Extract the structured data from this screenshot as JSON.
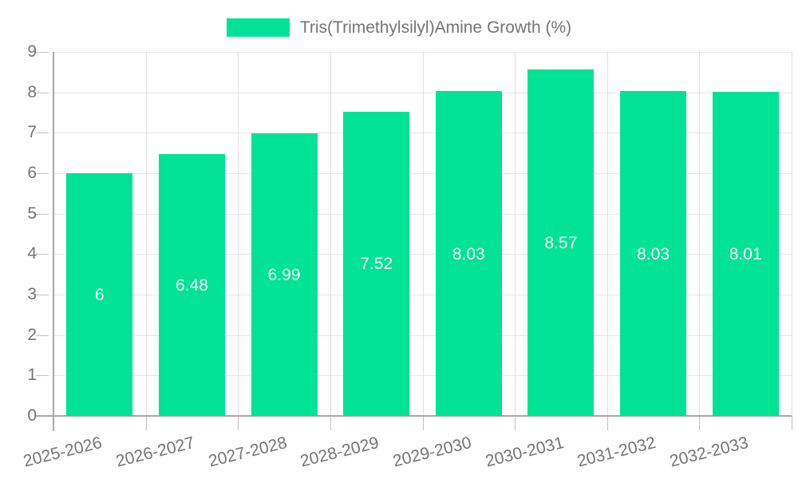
{
  "legend": {
    "label": "Tris(Trimethylsilyl)Amine Growth (%)"
  },
  "chart_data": {
    "type": "bar",
    "title": "Tris(Trimethylsilyl)Amine Growth (%)",
    "categories": [
      "2025-2026",
      "2026-2027",
      "2027-2028",
      "2028-2029",
      "2029-2030",
      "2030-2031",
      "2031-2032",
      "2032-2033"
    ],
    "values": [
      6,
      6.48,
      6.99,
      7.52,
      8.03,
      8.57,
      8.03,
      8.01
    ],
    "bar_labels": [
      "6",
      "6.48",
      "6.99",
      "7.52",
      "8.03",
      "8.57",
      "8.03",
      "8.01"
    ],
    "xlabel": "",
    "ylabel": "",
    "ylim": [
      0,
      9
    ],
    "yticks": [
      0,
      1,
      2,
      3,
      4,
      5,
      6,
      7,
      8,
      9
    ],
    "grid": true,
    "legend_position": "top",
    "colors": {
      "bar": "#00e396",
      "value_label": "#ffffff",
      "axis_text": "#757575",
      "grid_line_horizontal": "#e8e8e8",
      "grid_line_vertical": "#e0e0e0",
      "axis_line": "#a8a8a8",
      "tick": "#c2c2c2",
      "background": "#ffffff"
    }
  }
}
